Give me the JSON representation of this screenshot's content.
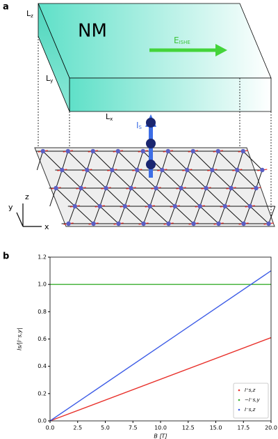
{
  "panel_a": {
    "label": "a",
    "material": "NM",
    "field": {
      "main": "E",
      "sub": "ISHE"
    },
    "lz": {
      "main": "L",
      "sub": "z"
    },
    "ly": {
      "main": "L",
      "sub": "y"
    },
    "lx": {
      "main": "L",
      "sub": "x"
    },
    "current": {
      "main": "I",
      "sub": "S"
    },
    "axes": {
      "z": "z",
      "y": "y",
      "x": "x"
    }
  },
  "chart_data": {
    "type": "line",
    "panel_label": "b",
    "xlabel": "B [T]",
    "ylabel": "Is/|I⁻s,y|",
    "x": [
      0,
      20
    ],
    "series": [
      {
        "name": "I⁺s,z",
        "color": "#e8302a",
        "values": [
          0,
          0.61
        ]
      },
      {
        "name": "−I⁻s,y",
        "color": "#3aae2e",
        "values": [
          1.0,
          1.0
        ]
      },
      {
        "name": "I⁻s,z",
        "color": "#3d5ce6",
        "values": [
          0,
          1.1
        ]
      }
    ],
    "xlim": [
      0,
      20
    ],
    "xticks": [
      {
        "value": 0,
        "label": "0.0"
      },
      {
        "value": 2.5,
        "label": "2.5"
      },
      {
        "value": 5,
        "label": "5.0"
      },
      {
        "value": 7.5,
        "label": "7.5"
      },
      {
        "value": 10,
        "label": "10.0"
      },
      {
        "value": 12.5,
        "label": "12.5"
      },
      {
        "value": 15,
        "label": "15.0"
      },
      {
        "value": 17.5,
        "label": "17.5"
      },
      {
        "value": 20,
        "label": "20.0"
      }
    ],
    "ylim": [
      0,
      1.2
    ],
    "yticks": [
      {
        "value": 0,
        "label": "0.0"
      },
      {
        "value": 0.2,
        "label": "0.2"
      },
      {
        "value": 0.4,
        "label": "0.4"
      },
      {
        "value": 0.6,
        "label": "0.6"
      },
      {
        "value": 0.8,
        "label": "0.8"
      },
      {
        "value": 1.0,
        "label": "1.0"
      },
      {
        "value": 1.2,
        "label": "1.2"
      }
    ],
    "legend": "lower right"
  }
}
